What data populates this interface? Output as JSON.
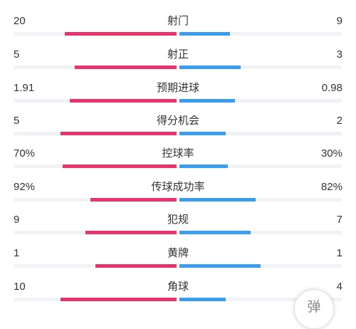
{
  "colors": {
    "home": "#e8336b",
    "away": "#3a9ded",
    "track": "#f1f2f5"
  },
  "stats": [
    {
      "label": "射门",
      "home": "20",
      "away": "9",
      "home_share": 0.69,
      "away_share": 0.31
    },
    {
      "label": "射正",
      "home": "5",
      "away": "3",
      "home_share": 0.625,
      "away_share": 0.375
    },
    {
      "label": "预期进球",
      "home": "1.91",
      "away": "0.98",
      "home_share": 0.66,
      "away_share": 0.34
    },
    {
      "label": "得分机会",
      "home": "5",
      "away": "2",
      "home_share": 0.714,
      "away_share": 0.286
    },
    {
      "label": "控球率",
      "home": "70%",
      "away": "30%",
      "home_share": 0.7,
      "away_share": 0.3
    },
    {
      "label": "传球成功率",
      "home": "92%",
      "away": "82%",
      "home_share": 0.53,
      "away_share": 0.47
    },
    {
      "label": "犯规",
      "home": "9",
      "away": "7",
      "home_share": 0.5625,
      "away_share": 0.4375
    },
    {
      "label": "黄牌",
      "home": "1",
      "away": "1",
      "home_share": 0.5,
      "away_share": 0.5
    },
    {
      "label": "角球",
      "home": "10",
      "away": "4",
      "home_share": 0.714,
      "away_share": 0.286
    }
  ],
  "danmaku_button": {
    "label": "弹"
  }
}
